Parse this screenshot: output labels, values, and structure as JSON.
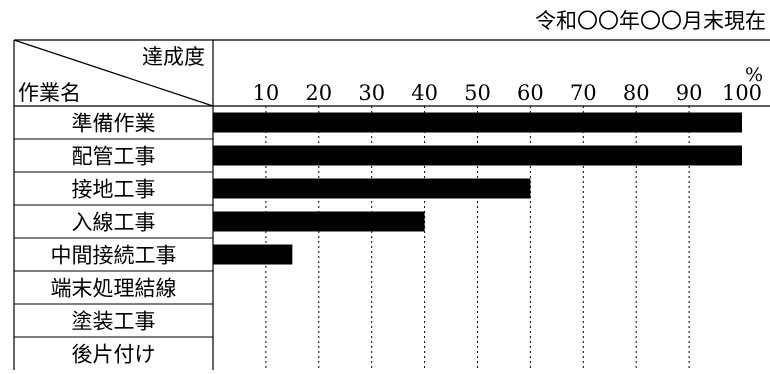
{
  "chart_data": {
    "type": "bar",
    "orientation": "horizontal",
    "date_label": "令和〇〇年〇〇月末現在",
    "header": {
      "column_label": "達成度",
      "row_label": "作業名",
      "unit": "%"
    },
    "ticks": [
      "10",
      "20",
      "30",
      "40",
      "50",
      "60",
      "70",
      "80",
      "90",
      "100"
    ],
    "xlim": [
      0,
      100
    ],
    "categories": [
      "準備作業",
      "配管工事",
      "接地工事",
      "入線工事",
      "中間接続工事",
      "端末処理結線",
      "塗装工事",
      "後片付け"
    ],
    "values": [
      100,
      100,
      60,
      40,
      15,
      0,
      0,
      0
    ],
    "bar_color": "#000000",
    "grid": "dotted"
  }
}
